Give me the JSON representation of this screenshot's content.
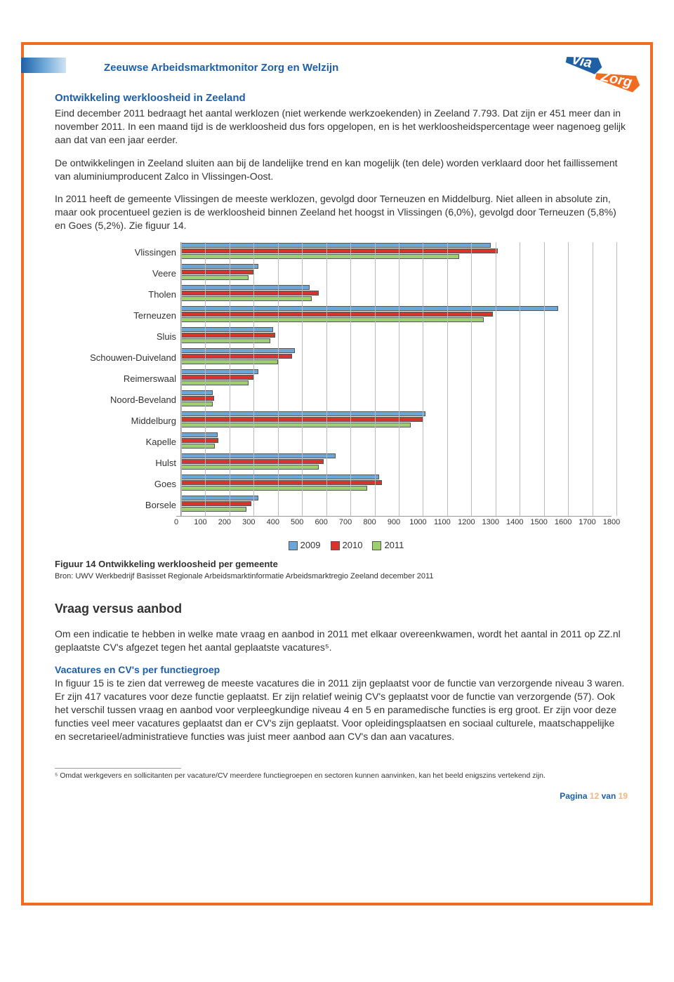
{
  "header": {
    "title": "Zeeuwse Arbeidsmarktmonitor Zorg en Welzijn"
  },
  "section1": {
    "heading": "Ontwikkeling werkloosheid in Zeeland",
    "p1": "Eind december 2011 bedraagt het aantal werklozen (niet werkende werkzoekenden) in Zeeland 7.793. Dat zijn er 451 meer dan in november 2011. In een maand tijd is de werkloosheid dus fors opgelopen, en is het werkloosheidspercentage weer nagenoeg gelijk aan dat van een jaar eerder.",
    "p2": "De ontwikkelingen in Zeeland sluiten aan bij de landelijke trend en kan mogelijk (ten dele) worden verklaard door het faillissement van aluminiumproducent Zalco in Vlissingen-Oost.",
    "p3": "In 2011 heeft de gemeente Vlissingen de meeste werklozen, gevolgd door Terneuzen en Middelburg. Niet alleen in absolute zin, maar ook procentueel gezien is de werkloosheid binnen Zeeland het hoogst in Vlissingen (6,0%), gevolgd door Terneuzen (5,8%) en Goes (5,2%). Zie figuur 14."
  },
  "chart": {
    "type": "bar",
    "xmin": 0,
    "xmax": 1800,
    "xtick_step": 100,
    "series": [
      "2009",
      "2010",
      "2011"
    ],
    "series_colors": [
      "#6aa6d8",
      "#d9342b",
      "#9fcf6a"
    ],
    "title_fontsize": 13,
    "label_fontsize": 13,
    "grid_color": "#bbbbbb",
    "background_color": "#ffffff",
    "categories": [
      {
        "name": "Vlissingen",
        "values": [
          1280,
          1310,
          1150
        ]
      },
      {
        "name": "Veere",
        "values": [
          320,
          300,
          280
        ]
      },
      {
        "name": "Tholen",
        "values": [
          530,
          570,
          540
        ]
      },
      {
        "name": "Terneuzen",
        "values": [
          1560,
          1290,
          1250
        ]
      },
      {
        "name": "Sluis",
        "values": [
          380,
          390,
          370
        ]
      },
      {
        "name": "Schouwen-Duiveland",
        "values": [
          470,
          460,
          400
        ]
      },
      {
        "name": "Reimerswaal",
        "values": [
          320,
          300,
          280
        ]
      },
      {
        "name": "Noord-Beveland",
        "values": [
          130,
          135,
          130
        ]
      },
      {
        "name": "Middelburg",
        "values": [
          1010,
          1000,
          950
        ]
      },
      {
        "name": "Kapelle",
        "values": [
          150,
          155,
          140
        ]
      },
      {
        "name": "Hulst",
        "values": [
          640,
          590,
          570
        ]
      },
      {
        "name": "Goes",
        "values": [
          820,
          830,
          770
        ]
      },
      {
        "name": "Borsele",
        "values": [
          320,
          290,
          270
        ]
      }
    ]
  },
  "figure": {
    "title": "Figuur 14 Ontwikkeling werkloosheid per gemeente",
    "source": "Bron: UWV Werkbedrijf Basisset Regionale Arbeidsmarktinformatie Arbeidsmarktregio Zeeland december 2011"
  },
  "section2": {
    "heading": "Vraag versus aanbod",
    "p1": "Om een indicatie te hebben in welke mate vraag en aanbod in 2011 met elkaar overeenkwamen, wordt het aantal in 2011 op ZZ.nl geplaatste CV's afgezet tegen het aantal geplaatste vacatures⁵."
  },
  "section3": {
    "heading": "Vacatures en CV's per functiegroep",
    "p1": "In figuur 15 is te zien dat verreweg de meeste vacatures die in 2011 zijn geplaatst voor de functie van verzorgende niveau 3 waren. Er zijn 417 vacatures voor deze functie geplaatst. Er zijn relatief weinig CV's geplaatst voor de functie van verzorgende (57). Ook het verschil tussen vraag en aanbod voor verpleegkundige niveau 4 en 5 en paramedische functies is erg groot. Er zijn voor deze functies veel meer vacatures geplaatst dan er CV's zijn geplaatst. Voor opleidingsplaatsen en sociaal culturele, maatschappelijke en secretarieel/administratieve functies was juist meer aanbod aan CV's dan aan vacatures."
  },
  "footnote": "⁵ Omdat werkgevers en sollicitanten per vacature/CV meerdere functiegroepen en sectoren kunnen aanvinken, kan het beeld enigszins vertekend zijn.",
  "pagenum": {
    "label": "Pagina",
    "current": "12",
    "sep": "van",
    "total": "19"
  },
  "logo": {
    "text1": "Via",
    "text2": "Zorg",
    "bg1": "#1f5fa5",
    "bg2": "#f36a21"
  }
}
